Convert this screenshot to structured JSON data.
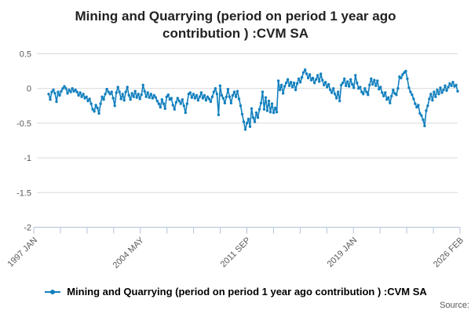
{
  "title": "Mining and Quarrying (period on period 1 year ago contribution ) :CVM SA",
  "legend": {
    "label": "Mining and Quarrying (period on period 1 year ago contribution ) :CVM SA"
  },
  "source_label": "Source:",
  "colors": {
    "line": "#1380be",
    "grid": "#d9d9d9",
    "axis": "#b2c2d8",
    "tick_label": "#595959",
    "title": "#222222"
  },
  "chart_data": {
    "type": "line",
    "title": "Mining and Quarrying (period on period 1 year ago contribution ) :CVM SA",
    "grid": "horizontal",
    "legend_position": "bottom",
    "x_axis": {
      "tick_labels": [
        "1997 JAN",
        "2004 MAY",
        "2011 SEP",
        "2019 JAN",
        "2026 FEB"
      ],
      "total_ticks": 17,
      "labeled_every_nth_tick": 4
    },
    "y_axis": {
      "tick_values": [
        0.5,
        0,
        -0.5,
        -1,
        -1.5,
        -2
      ],
      "tick_labels": [
        "0.5",
        "0",
        "-0.5",
        "-1",
        "-1.5",
        "-2"
      ],
      "range": [
        -2,
        0.5
      ]
    },
    "series": [
      {
        "name": "Mining and Quarrying (period on period 1 year ago contribution ) :CVM SA",
        "color": "#1380be",
        "marker": "circle",
        "frequency": "monthly",
        "x_start": "1998 FEB",
        "x_end": "2025 DEC",
        "values": [
          -0.08,
          -0.16,
          -0.05,
          -0.02,
          -0.07,
          -0.19,
          -0.05,
          -0.1,
          -0.04,
          0.0,
          0.03,
          0.0,
          -0.07,
          -0.02,
          -0.05,
          0.0,
          -0.04,
          -0.02,
          -0.05,
          -0.1,
          -0.06,
          -0.12,
          -0.08,
          -0.14,
          -0.12,
          -0.18,
          -0.15,
          -0.22,
          -0.3,
          -0.33,
          -0.24,
          -0.28,
          -0.36,
          -0.22,
          -0.12,
          -0.16,
          -0.08,
          -0.01,
          -0.05,
          -0.08,
          -0.05,
          -0.14,
          -0.25,
          -0.06,
          0.02,
          -0.05,
          -0.15,
          -0.08,
          -0.17,
          -0.05,
          0.02,
          -0.1,
          -0.16,
          -0.07,
          -0.12,
          -0.04,
          -0.13,
          -0.08,
          -0.15,
          -0.09,
          0.05,
          -0.04,
          -0.12,
          -0.06,
          -0.13,
          -0.08,
          -0.14,
          -0.1,
          -0.13,
          -0.18,
          -0.22,
          -0.27,
          -0.16,
          -0.22,
          -0.29,
          -0.12,
          -0.09,
          -0.16,
          -0.14,
          -0.24,
          -0.3,
          -0.2,
          -0.14,
          -0.18,
          -0.22,
          -0.16,
          -0.25,
          -0.35,
          -0.22,
          -0.08,
          -0.06,
          -0.13,
          -0.08,
          -0.14,
          -0.1,
          -0.17,
          -0.12,
          -0.06,
          -0.14,
          -0.1,
          -0.17,
          -0.12,
          -0.15,
          -0.19,
          -0.12,
          -0.05,
          0.0,
          -0.08,
          -0.38,
          0.04,
          -0.1,
          -0.14,
          -0.21,
          -0.12,
          -0.01,
          -0.12,
          -0.21,
          -0.1,
          -0.05,
          -0.12,
          -0.04,
          -0.15,
          -0.25,
          -0.37,
          -0.48,
          -0.59,
          -0.5,
          -0.44,
          -0.55,
          -0.29,
          -0.42,
          -0.48,
          -0.35,
          -0.42,
          -0.3,
          -0.21,
          -0.05,
          -0.3,
          -0.13,
          -0.32,
          -0.18,
          -0.34,
          -0.22,
          -0.35,
          -0.28,
          -0.34,
          0.11,
          -0.02,
          0.05,
          -0.07,
          0.03,
          0.08,
          0.13,
          0.04,
          0.09,
          0.02,
          0.08,
          -0.02,
          0.07,
          0.14,
          0.09,
          0.16,
          0.23,
          0.27,
          0.21,
          0.15,
          0.2,
          0.12,
          0.15,
          0.08,
          0.13,
          0.19,
          0.1,
          0.21,
          0.12,
          0.05,
          0.09,
          0.02,
          0.06,
          -0.02,
          -0.06,
          0.0,
          -0.08,
          -0.14,
          -0.05,
          -0.18,
          0.05,
          0.08,
          0.14,
          0.04,
          0.1,
          0.03,
          0.13,
          0.06,
          0.01,
          0.19,
          0.08,
          0.0,
          0.02,
          -0.05,
          -0.08,
          0.0,
          -0.05,
          -0.09,
          0.05,
          0.14,
          0.06,
          0.12,
          0.04,
          0.11,
          -0.01,
          0.02,
          -0.06,
          -0.11,
          -0.06,
          -0.16,
          -0.13,
          -0.21,
          -0.11,
          -0.02,
          -0.07,
          -0.09,
          0.0,
          0.17,
          0.15,
          0.2,
          0.23,
          0.25,
          0.14,
          0.01,
          -0.05,
          -0.09,
          -0.15,
          -0.22,
          -0.27,
          -0.24,
          -0.36,
          -0.39,
          -0.45,
          -0.54,
          -0.32,
          -0.25,
          -0.15,
          -0.08,
          -0.17,
          -0.05,
          -0.12,
          -0.02,
          -0.08,
          0.01,
          -0.06,
          -0.02,
          0.04,
          -0.03,
          0.02,
          0.07,
          0.04,
          0.09,
          0.03,
          0.05,
          -0.04
        ]
      }
    ]
  }
}
